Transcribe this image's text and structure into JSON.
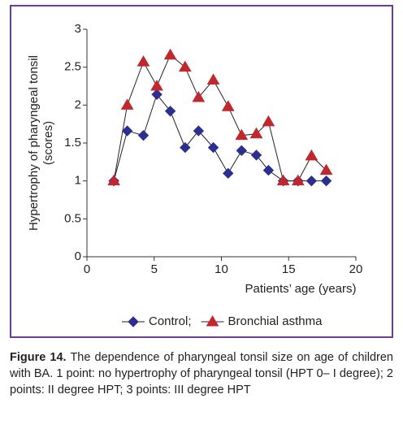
{
  "chart_data": {
    "type": "line",
    "x": [
      2,
      3,
      4.2,
      5.2,
      6.2,
      7.3,
      8.3,
      9.4,
      10.5,
      11.5,
      12.6,
      13.5,
      14.6,
      15.7,
      16.7,
      17.8
    ],
    "series": [
      {
        "name": "Control;",
        "color": "#2b2f8f",
        "marker": "diamond",
        "values": [
          1,
          1.66,
          1.6,
          2.14,
          1.92,
          1.44,
          1.66,
          1.44,
          1.1,
          1.4,
          1.34,
          1.14,
          1,
          1,
          1,
          1
        ]
      },
      {
        "name": "Bronchial asthma",
        "color": "#c1272d",
        "marker": "triangle",
        "values": [
          1,
          2.0,
          2.57,
          2.25,
          2.66,
          2.5,
          2.1,
          2.33,
          1.98,
          1.6,
          1.62,
          1.78,
          1,
          1,
          1.33,
          1.14
        ]
      }
    ],
    "xlim": [
      0,
      20
    ],
    "xticks": [
      0,
      5,
      10,
      15,
      20
    ],
    "ylim": [
      0,
      3
    ],
    "yticks": [
      0,
      0.5,
      1,
      1.5,
      2,
      2.5,
      3
    ],
    "xlabel": "Patients’ age (years)",
    "ylabel": [
      "Hypertrophy of pharyngeal tonsil",
      "(scores)"
    ],
    "legend": "bottom"
  },
  "caption": {
    "label": "Figure 14.",
    "text": "The dependence of pharyngeal tonsil size on age of children with BA. 1 point: no hypertrophy of pharyngeal tonsil (HPT 0– I degree); 2 points: II degree HPT; 3 points: III degree HPT"
  }
}
